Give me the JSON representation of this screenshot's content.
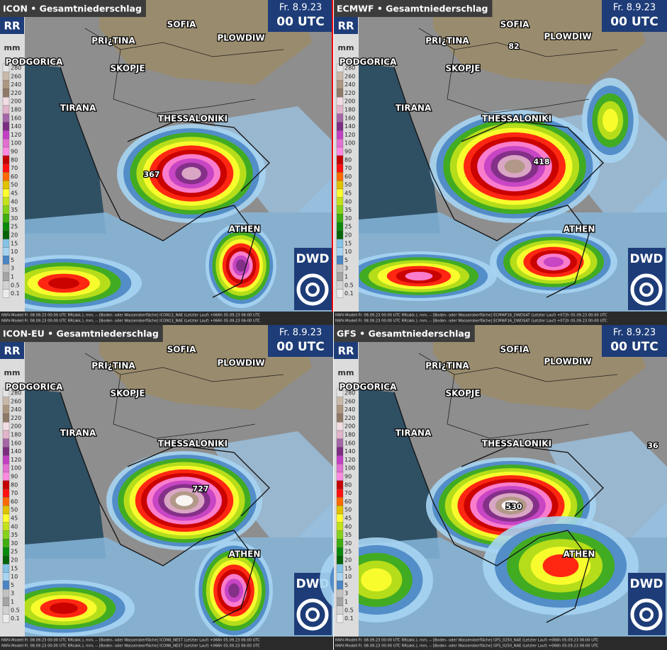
{
  "panels": [
    {
      "title": "ICON • Gesamtniederschlag",
      "date": "Fr. 8.9.23",
      "time": "00 UTC",
      "badge": "RR",
      "unit": "mm",
      "logo": "DWD",
      "cities": [
        "SOFIA",
        "PRI¿TINA",
        "PLOWDIW",
        "PODGORICA",
        "SKOPJE",
        "TIRANA",
        "THESSALONIKI",
        "ATHEN"
      ],
      "max_values": [
        "367"
      ],
      "footer": [
        "NWV-Modell  Fr. 08.09.23 00:00 UTC  RR(akk.), mm, --  [Boden- oder Wasseroberfläche]  ICON13_NAE  (Letzter Lauf) +066h 05.09.23 06:00 UTC",
        "NWV-Modell  Fr. 08.09.23 00:00 UTC  RR(akk.), mm, --  [Boden- oder Wasseroberfläche]  ICON13_NAE  (Letzter Lauf) +066h 05.09.23 06:00 UTC"
      ]
    },
    {
      "title": "ECMWF • Gesamtniederschlag",
      "date": "Fr. 8.9.23",
      "time": "00 UTC",
      "badge": "RR",
      "unit": "mm",
      "logo": "DWD",
      "cities": [
        "SOFIA",
        "PRI¿TINA",
        "PLOWDIW",
        "PODGORICA",
        "SKOPJE",
        "TIRANA",
        "THESSALONIKI",
        "ATHEN"
      ],
      "max_values": [
        "418",
        "82"
      ],
      "footer": [
        "NWV-Modell  Fr. 08.09.23 00:00 UTC  RR(akk.), mm, --  [Boden- oder Wasseroberfläche]  ECMWF16_DWDSAT  (Letzter Lauf) +072h 05.09.23 00:00 UTC",
        "NWV-Modell  Fr. 08.09.23 00:00 UTC  RR(akk.), mm, --  [Boden- oder Wasseroberfläche]  ECMWF16_DWDSAT  (Letzter Lauf) +072h 05.09.23 00:00 UTC"
      ]
    },
    {
      "title": "ICON-EU • Gesamtniederschlag",
      "date": "Fr. 8.9.23",
      "time": "00 UTC",
      "badge": "RR",
      "unit": "mm",
      "logo": "DWD",
      "cities": [
        "SOFIA",
        "PRI¿TINA",
        "PLOWDIW",
        "PODGORICA",
        "SKOPJE",
        "TIRANA",
        "THESSALONIKI",
        "ATHEN"
      ],
      "max_values": [
        "727"
      ],
      "footer": [
        "NWV-Modell  Fr. 08.09.23 00:00 UTC  RR(akk.), mm, --  [Boden- oder Wasseroberfläche]  ICON6_NEST  (Letzter Lauf) +066h 05.09.23 06:00 UTC",
        "NWV-Modell  Fr. 08.09.23 00:00 UTC  RR(akk.), mm, --  [Boden- oder Wasseroberfläche]  ICON6_NEST  (Letzter Lauf) +066h 05.09.23 06:00 UTC"
      ]
    },
    {
      "title": "GFS • Gesamtniederschlag",
      "date": "Fr. 8.9.23",
      "time": "00 UTC",
      "badge": "RR",
      "unit": "mm",
      "logo": "DWD",
      "cities": [
        "SOFIA",
        "PRI¿TINA",
        "PLOWDIW",
        "PODGORICA",
        "SKOPJE",
        "TIRANA",
        "THESSALONIKI",
        "ATHEN"
      ],
      "max_values": [
        "530",
        "36"
      ],
      "footer": [
        "NWV-Modell  Fr. 08.09.23 00:00 UTC  RR(akk.), mm, --  [Boden- oder Wasseroberfläche]  GFS_0250_NAE  (Letzter Lauf) +066h 05.09.23 06:00 UTC",
        "NWV-Modell  Fr. 08.09.23 00:00 UTC  RR(akk.), mm, --  [Boden- oder Wasseroberfläche]  GFS_0250_NAE  (Letzter Lauf) +066h 05.09.23 06:00 UTC"
      ]
    }
  ],
  "legend": {
    "values": [
      280,
      260,
      240,
      220,
      200,
      180,
      160,
      140,
      120,
      100,
      90,
      80,
      70,
      60,
      50,
      45,
      40,
      35,
      30,
      25,
      20,
      15,
      10,
      5,
      3,
      1,
      0.5,
      0.1
    ],
    "colors": [
      "#e4e4e4",
      "#c9b9a9",
      "#ad9781",
      "#8f7a68",
      "#f2dde4",
      "#e2b4cb",
      "#a566a6",
      "#7c2d82",
      "#c23fc3",
      "#e36fd2",
      "#ff8ae2",
      "#c40000",
      "#ff1010",
      "#ff6a00",
      "#e2c200",
      "#ffff30",
      "#c2e21a",
      "#86d21a",
      "#3fae10",
      "#0a8a0a",
      "#066406",
      "#84c2e6",
      "#a6d4f2",
      "#4a86c4",
      "#c2c2c2",
      "#a4a4a4",
      "#d2d2d2",
      "#ececec"
    ]
  }
}
